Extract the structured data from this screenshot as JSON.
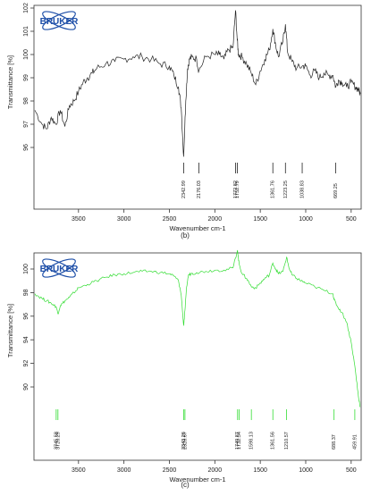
{
  "chart_data": [
    {
      "type": "line",
      "panel_label": "(b)",
      "logo_text": "BRUKER",
      "xlabel": "Wavenumber cm-1",
      "ylabel": "Transmittance [%]",
      "xlim": [
        3990,
        390
      ],
      "ylim": [
        93,
        102
      ],
      "x_ticks": [
        3500,
        3000,
        2500,
        2000,
        1500,
        1000,
        500
      ],
      "y_ticks": [
        96,
        97,
        98,
        99,
        100,
        101,
        102
      ],
      "grid": false,
      "line_color": "#222222",
      "series": [
        {
          "x": [
            3980,
            3900,
            3850,
            3800,
            3750,
            3700,
            3650,
            3600,
            3550,
            3500,
            3450,
            3400,
            3350,
            3300,
            3200,
            3100,
            3000,
            2900,
            2800,
            2700,
            2600,
            2500,
            2450,
            2400,
            2370,
            2342.99,
            2320,
            2300,
            2280,
            2250,
            2200,
            2176.03,
            2100,
            2000,
            1950,
            1900,
            1850,
            1800,
            1772.82,
            1752.79,
            1740,
            1700,
            1650,
            1600,
            1550,
            1500,
            1450,
            1400,
            1361.76,
            1330,
            1300,
            1250,
            1223.25,
            1200,
            1150,
            1100,
            1038.83,
            1000,
            950,
            900,
            850,
            800,
            750,
            700,
            669.25,
            640,
            600,
            550,
            500,
            450,
            420,
            400
          ],
          "y": [
            97.6,
            97.0,
            96.8,
            97.3,
            97.0,
            97.6,
            96.9,
            97.8,
            98.0,
            98.4,
            98.8,
            99.0,
            99.2,
            99.4,
            99.6,
            99.7,
            99.8,
            99.9,
            99.9,
            99.8,
            99.6,
            99.5,
            99.1,
            98.6,
            97.7,
            95.6,
            98.0,
            99.4,
            99.8,
            99.9,
            99.8,
            99.3,
            99.9,
            100.0,
            100.0,
            99.8,
            100.2,
            100.3,
            101.9,
            100.6,
            100.0,
            99.9,
            99.6,
            99.2,
            98.7,
            99.3,
            99.8,
            100.2,
            101.1,
            100.4,
            99.9,
            100.6,
            101.3,
            100.1,
            99.7,
            99.4,
            99.5,
            99.5,
            99.1,
            99.3,
            99.0,
            99.2,
            99.1,
            99.1,
            98.6,
            98.9,
            98.8,
            98.6,
            98.8,
            98.6,
            98.5,
            98.3
          ]
        }
      ],
      "peak_labels": [
        "2342.99",
        "2176.03",
        "1772.82",
        "1752.79",
        "1361.76",
        "1223.25",
        "1038.83",
        "669.25"
      ],
      "peak_positions": [
        2342.99,
        2176.03,
        1772.82,
        1752.79,
        1361.76,
        1223.25,
        1038.83,
        669.25
      ]
    },
    {
      "type": "line",
      "panel_label": "(c)",
      "logo_text": "BRUKER",
      "xlabel": "Wavenumber cm-1",
      "ylabel": "Transmittance [%]",
      "xlim": [
        3990,
        390
      ],
      "ylim": [
        81,
        102
      ],
      "x_ticks": [
        3500,
        3000,
        2500,
        2000,
        1500,
        1000,
        500
      ],
      "y_ticks": [
        90,
        92,
        94,
        96,
        98,
        100
      ],
      "grid": false,
      "line_color": "#33dd33",
      "series": [
        {
          "x": [
            3980,
            3900,
            3850,
            3800,
            3745.58,
            3726.29,
            3700,
            3650,
            3600,
            3550,
            3500,
            3400,
            3300,
            3200,
            3100,
            3000,
            2900,
            2800,
            2700,
            2600,
            2500,
            2450,
            2400,
            2370,
            2343.26,
            2328.67,
            2310,
            2290,
            2260,
            2200,
            2100,
            2000,
            1900,
            1800,
            1749.87,
            1732.54,
            1700,
            1650,
            1598.13,
            1550,
            1500,
            1450,
            1400,
            1361.56,
            1330,
            1300,
            1250,
            1210.57,
            1180,
            1150,
            1100,
            1050,
            1000,
            900,
            800,
            700,
            688.37,
            650,
            600,
            550,
            500,
            459.91,
            440,
            420,
            400
          ],
          "y": [
            97.9,
            97.5,
            97.3,
            97.1,
            96.8,
            96.2,
            96.9,
            97.3,
            97.6,
            98.0,
            98.4,
            98.7,
            99.0,
            99.3,
            99.5,
            99.6,
            99.7,
            99.8,
            99.8,
            99.7,
            99.6,
            99.4,
            99.0,
            97.8,
            95.2,
            96.5,
            98.5,
            99.5,
            99.6,
            99.7,
            99.8,
            99.9,
            99.9,
            100.1,
            101.6,
            100.4,
            99.6,
            99.2,
            98.5,
            98.4,
            98.8,
            99.2,
            99.5,
            100.5,
            100.0,
            99.6,
            99.8,
            101.0,
            100.0,
            99.5,
            99.2,
            99.0,
            98.8,
            98.5,
            98.2,
            97.9,
            97.4,
            96.8,
            96.3,
            95.5,
            93.8,
            91.8,
            90.5,
            89.2,
            88.3
          ]
        }
      ],
      "peak_labels": [
        "3745.58",
        "3726.29",
        "2343.26",
        "2328.67",
        "1749.87",
        "1732.54",
        "1598.13",
        "1361.56",
        "1210.57",
        "688.37",
        "459.91"
      ],
      "peak_positions": [
        3745.58,
        3726.29,
        2343.26,
        2328.67,
        1749.87,
        1732.54,
        1598.13,
        1361.56,
        1210.57,
        688.37,
        459.91
      ]
    }
  ],
  "colors": {
    "logo_blue": "#1e4fa8",
    "peak_marker_b": "#222222",
    "peak_marker_c": "#33dd33"
  }
}
